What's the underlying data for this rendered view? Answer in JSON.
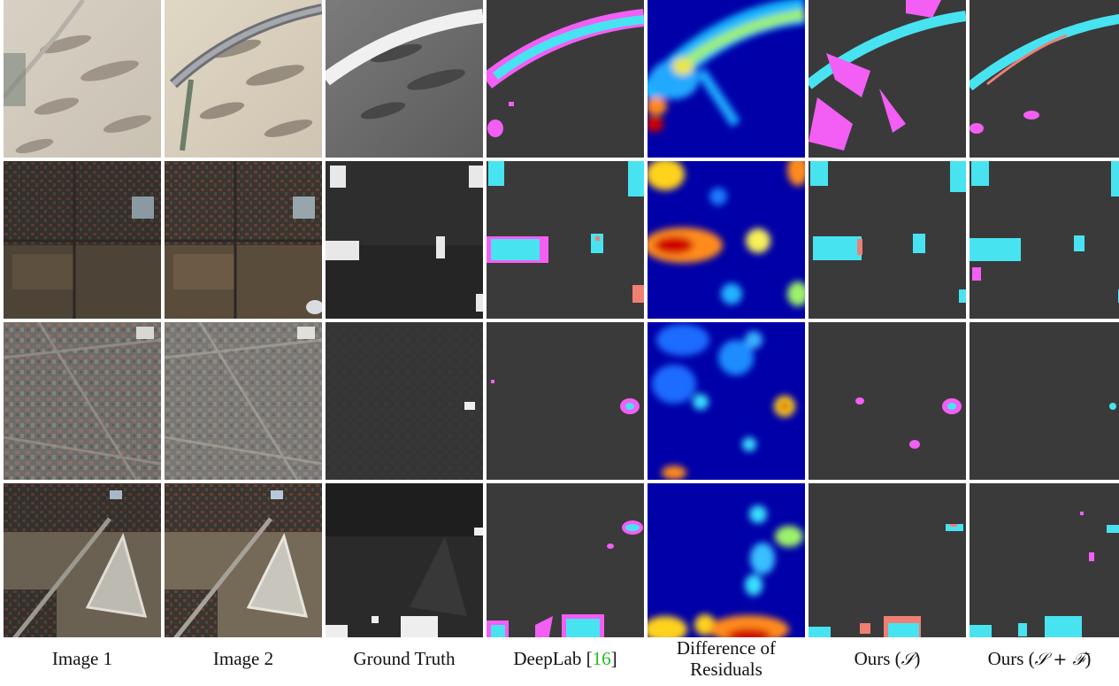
{
  "columns": [
    {
      "label": "Image 1"
    },
    {
      "label": "Image 2"
    },
    {
      "label": "Ground Truth"
    },
    {
      "label": "DeepLab",
      "ref": "16"
    },
    {
      "label_line1": "Difference of",
      "label_line2": "Residuals"
    },
    {
      "label": "Ours (",
      "symbol": "𝒮",
      "suffix": ")"
    },
    {
      "label": "Ours (",
      "symbol": "𝒮 + ℱ",
      "suffix": ")"
    }
  ],
  "rows": [
    "desert-road",
    "suburb-blocks",
    "dense-city",
    "airfield-triangle"
  ],
  "colors": {
    "background_dark": "#3a3a3a",
    "true_positive": "#48e3f0",
    "false_positive": "#f35ef5",
    "false_negative": "#ef7f73",
    "heatmap_low": "#0000a8",
    "heatmap_high": "#d00000"
  }
}
